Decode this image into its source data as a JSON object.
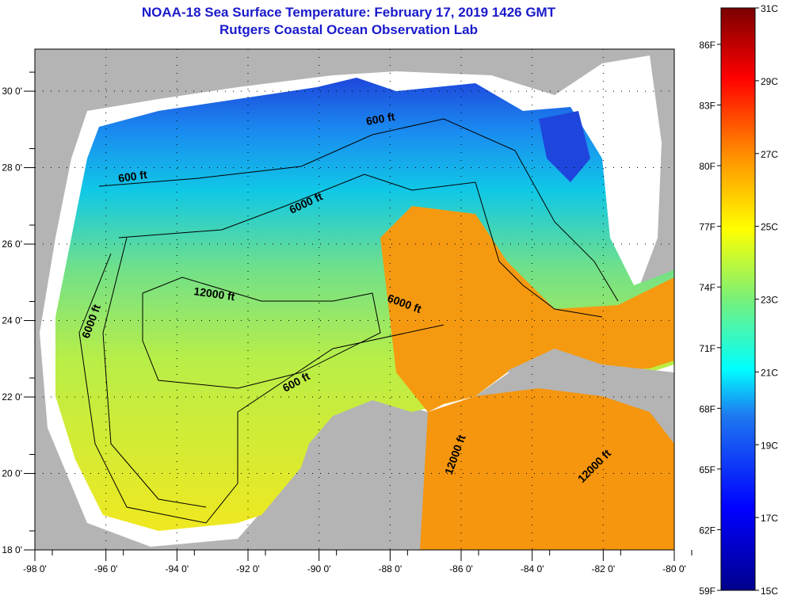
{
  "title": "NOAA-18 Sea Surface Temperature:  February 17, 2019 1426 GMT",
  "subtitle": "Rutgers Coastal Ocean Observation Lab",
  "map": {
    "lon_range": [
      -98,
      -80
    ],
    "lat_range": [
      18,
      31.1
    ],
    "lon_ticks": [
      {
        "v": -98,
        "label": "-98 0'"
      },
      {
        "v": -96,
        "label": "-96 0'"
      },
      {
        "v": -94,
        "label": "-94 0'"
      },
      {
        "v": -92,
        "label": "-92 0'"
      },
      {
        "v": -90,
        "label": "-90 0'"
      },
      {
        "v": -88,
        "label": "-88 0'"
      },
      {
        "v": -86,
        "label": "-86 0'"
      },
      {
        "v": -84,
        "label": "-84 0'"
      },
      {
        "v": -82,
        "label": "-82 0'"
      },
      {
        "v": -80,
        "label": "-80 0'"
      }
    ],
    "lat_ticks": [
      {
        "v": 18,
        "label": "18 0'"
      },
      {
        "v": 20,
        "label": "20 0'"
      },
      {
        "v": 22,
        "label": "22 0'"
      },
      {
        "v": 24,
        "label": "24 0'"
      },
      {
        "v": 26,
        "label": "26 0'"
      },
      {
        "v": 28,
        "label": "28 0'"
      },
      {
        "v": 30,
        "label": "30 0'"
      }
    ],
    "contour_labels": [
      "600 ft",
      "600 ft",
      "6000 ft",
      "12000 ft",
      "6000 ft",
      "6000 ft",
      "600 ft",
      "12000 ft",
      "12000 ft"
    ],
    "colors": {
      "land": "#b4b4b4",
      "cloud": "#ffffff",
      "cold": "#1e46dc",
      "cool": "#10c0e8",
      "mild": "#80e070",
      "warm": "#d8f030",
      "hot": "#f59a10"
    }
  },
  "colorbar": {
    "range_c": [
      15,
      31
    ],
    "celsius_ticks": [
      {
        "v": 31,
        "label": "31C"
      },
      {
        "v": 29,
        "label": "29C"
      },
      {
        "v": 27,
        "label": "27C"
      },
      {
        "v": 25,
        "label": "25C"
      },
      {
        "v": 23,
        "label": "23C"
      },
      {
        "v": 21,
        "label": "21C"
      },
      {
        "v": 19,
        "label": "19C"
      },
      {
        "v": 17,
        "label": "17C"
      },
      {
        "v": 15,
        "label": "15C"
      }
    ],
    "fahrenheit_ticks": [
      {
        "v": 86,
        "label": "86F"
      },
      {
        "v": 83,
        "label": "83F"
      },
      {
        "v": 80,
        "label": "80F"
      },
      {
        "v": 77,
        "label": "77F"
      },
      {
        "v": 74,
        "label": "74F"
      },
      {
        "v": 71,
        "label": "71F"
      },
      {
        "v": 68,
        "label": "68F"
      },
      {
        "v": 65,
        "label": "65F"
      },
      {
        "v": 62,
        "label": "62F"
      },
      {
        "v": 59,
        "label": "59F"
      }
    ]
  }
}
